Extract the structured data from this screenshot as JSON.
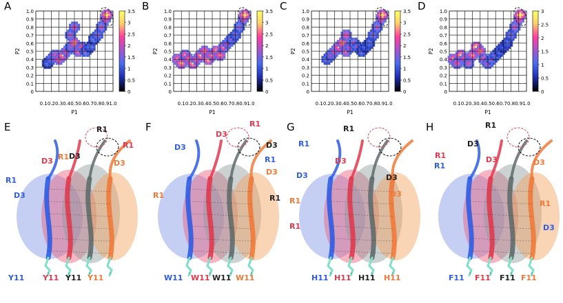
{
  "colors": {
    "colorbar_stops": [
      "#000000",
      "#1f2fb0",
      "#4a6cf0",
      "#a855c8",
      "#ff3fa0",
      "#ffd36b",
      "#ffff66"
    ],
    "blue": "#2f5de3",
    "red": "#e03a4e",
    "black": "#222222",
    "orange": "#f07a3a",
    "protein_blue": "#7f95e6",
    "protein_red": "#e85a7a",
    "protein_gray": "#8f9a9a",
    "protein_orange": "#f2a05a"
  },
  "chart_data": [
    {
      "panel": "A",
      "type": "heatmap",
      "xlabel": "P1",
      "ylabel": "P2",
      "xlim": [
        0,
        1.0
      ],
      "ylim": [
        0,
        1.0
      ],
      "xticks": [
        "0.1",
        "0.2",
        "0.3",
        "0.4",
        "0.5",
        "0.6",
        "0.7",
        "0.8",
        "0.9",
        "1.0"
      ],
      "yticks": [
        "0",
        "0.1",
        "0.2",
        "0.3",
        "0.4",
        "0.5",
        "0.6",
        "0.7",
        "0.8",
        "0.9",
        "1.0"
      ],
      "colorbar_ticks": [
        "0",
        "0.5",
        "1",
        "1.5",
        "2",
        "2.5",
        "3",
        "3.5"
      ],
      "grid": true,
      "cells": [
        [
          0.15,
          0.35,
          1.2
        ],
        [
          0.2,
          0.4,
          1.8
        ],
        [
          0.25,
          0.45,
          2.2
        ],
        [
          0.3,
          0.4,
          2.8
        ],
        [
          0.35,
          0.45,
          3.0
        ],
        [
          0.4,
          0.5,
          2.5
        ],
        [
          0.45,
          0.55,
          1.8
        ],
        [
          0.45,
          0.7,
          2.0
        ],
        [
          0.5,
          0.8,
          2.2
        ],
        [
          0.5,
          0.6,
          3.0
        ],
        [
          0.55,
          0.5,
          2.6
        ],
        [
          0.6,
          0.55,
          2.4
        ],
        [
          0.65,
          0.5,
          1.8
        ],
        [
          0.7,
          0.55,
          1.4
        ],
        [
          0.75,
          0.65,
          1.5
        ],
        [
          0.8,
          0.7,
          1.8
        ],
        [
          0.85,
          0.8,
          2.0
        ],
        [
          0.9,
          0.9,
          2.6
        ],
        [
          0.92,
          0.95,
          3.3
        ]
      ]
    },
    {
      "panel": "B",
      "type": "heatmap",
      "xlabel": "P1",
      "ylabel": "P2",
      "xlim": [
        0,
        1.0
      ],
      "ylim": [
        0,
        1.0
      ],
      "xticks": [
        "0.1",
        "0.2",
        "0.3",
        "0.4",
        "0.5",
        "0.6",
        "0.7",
        "0.8",
        "0.9",
        "1.0"
      ],
      "yticks": [
        "0",
        "0.1",
        "0.2",
        "0.3",
        "0.4",
        "0.5",
        "0.6",
        "0.7",
        "0.8",
        "0.9",
        "1.0"
      ],
      "colorbar_ticks": [
        "0",
        "0.5",
        "1",
        "1.5",
        "2",
        "2.5",
        "3",
        "3.5"
      ],
      "grid": true,
      "cells": [
        [
          0.05,
          0.4,
          2.8
        ],
        [
          0.1,
          0.35,
          3.0
        ],
        [
          0.15,
          0.45,
          2.6
        ],
        [
          0.2,
          0.4,
          2.9
        ],
        [
          0.25,
          0.35,
          3.1
        ],
        [
          0.3,
          0.4,
          2.7
        ],
        [
          0.35,
          0.45,
          3.0
        ],
        [
          0.4,
          0.5,
          2.8
        ],
        [
          0.45,
          0.4,
          3.2
        ],
        [
          0.5,
          0.45,
          2.9
        ],
        [
          0.55,
          0.5,
          3.0
        ],
        [
          0.6,
          0.45,
          2.8
        ],
        [
          0.65,
          0.55,
          2.6
        ],
        [
          0.7,
          0.6,
          2.2
        ],
        [
          0.75,
          0.65,
          1.8
        ],
        [
          0.8,
          0.7,
          1.6
        ],
        [
          0.85,
          0.8,
          1.8
        ],
        [
          0.9,
          0.9,
          2.4
        ],
        [
          0.92,
          0.95,
          3.3
        ]
      ]
    },
    {
      "panel": "C",
      "type": "heatmap",
      "xlabel": "P1",
      "ylabel": "P2",
      "xlim": [
        0,
        1.0
      ],
      "ylim": [
        0,
        1.0
      ],
      "xticks": [
        "0.1",
        "0.2",
        "0.3",
        "0.4",
        "0.5",
        "0.6",
        "0.7",
        "0.8",
        "0.9",
        "1.0"
      ],
      "yticks": [
        "0",
        "0.1",
        "0.2",
        "0.3",
        "0.4",
        "0.5",
        "0.6",
        "0.7",
        "0.8",
        "0.9",
        "1.0"
      ],
      "colorbar_ticks": [
        "0",
        "0.5",
        "1",
        "1.5",
        "2",
        "2.5",
        "3",
        "3.5"
      ],
      "grid": true,
      "cells": [
        [
          0.2,
          0.4,
          1.6
        ],
        [
          0.25,
          0.45,
          2.0
        ],
        [
          0.3,
          0.5,
          2.4
        ],
        [
          0.35,
          0.55,
          2.8
        ],
        [
          0.4,
          0.6,
          3.0
        ],
        [
          0.45,
          0.7,
          2.4
        ],
        [
          0.45,
          0.5,
          2.6
        ],
        [
          0.5,
          0.55,
          2.2
        ],
        [
          0.55,
          0.6,
          2.0
        ],
        [
          0.6,
          0.55,
          1.8
        ],
        [
          0.65,
          0.5,
          1.5
        ],
        [
          0.7,
          0.55,
          1.3
        ],
        [
          0.75,
          0.6,
          1.4
        ],
        [
          0.8,
          0.7,
          1.7
        ],
        [
          0.85,
          0.8,
          2.0
        ],
        [
          0.9,
          0.9,
          2.6
        ],
        [
          0.92,
          0.95,
          3.3
        ]
      ]
    },
    {
      "panel": "D",
      "type": "heatmap",
      "xlabel": "P1",
      "ylabel": "P2",
      "xlim": [
        0,
        1.0
      ],
      "ylim": [
        0,
        1.0
      ],
      "xticks": [
        "0.1",
        "0.2",
        "0.3",
        "0.4",
        "0.5",
        "0.6",
        "0.7",
        "0.8",
        "0.9",
        "1.0"
      ],
      "yticks": [
        "0",
        "0.1",
        "0.2",
        "0.3",
        "0.4",
        "0.5",
        "0.6",
        "0.7",
        "0.8",
        "0.9",
        "1.0"
      ],
      "colorbar_ticks": [
        "0",
        "0.5",
        "1",
        "1.5",
        "2",
        "2.5",
        "3"
      ],
      "grid": true,
      "cells": [
        [
          0.05,
          0.4,
          2.4
        ],
        [
          0.1,
          0.35,
          2.0
        ],
        [
          0.15,
          0.45,
          2.6
        ],
        [
          0.2,
          0.4,
          2.2
        ],
        [
          0.25,
          0.35,
          1.8
        ],
        [
          0.3,
          0.45,
          2.4
        ],
        [
          0.35,
          0.55,
          2.8
        ],
        [
          0.4,
          0.5,
          2.5
        ],
        [
          0.45,
          0.4,
          2.0
        ],
        [
          0.5,
          0.35,
          1.8
        ],
        [
          0.55,
          0.4,
          1.6
        ],
        [
          0.6,
          0.45,
          1.4
        ],
        [
          0.65,
          0.5,
          1.2
        ],
        [
          0.7,
          0.55,
          1.0
        ],
        [
          0.75,
          0.6,
          1.1
        ],
        [
          0.8,
          0.7,
          1.4
        ],
        [
          0.85,
          0.8,
          1.8
        ],
        [
          0.9,
          0.9,
          2.4
        ],
        [
          0.92,
          0.95,
          3.0
        ]
      ]
    }
  ],
  "structures": [
    {
      "panel": "E",
      "labels": [
        {
          "text": "R1",
          "color": "black"
        },
        {
          "text": "R1",
          "color": "red"
        },
        {
          "text": "D3",
          "color": "red"
        },
        {
          "text": "R1",
          "color": "orange"
        },
        {
          "text": "D3",
          "color": "black"
        },
        {
          "text": "D3",
          "color": "orange"
        },
        {
          "text": "R1",
          "color": "blue"
        },
        {
          "text": "D3",
          "color": "blue"
        },
        {
          "text": "Y11",
          "color": "blue"
        },
        {
          "text": "Y11",
          "color": "red"
        },
        {
          "text": "Y11",
          "color": "black"
        },
        {
          "text": "Y11",
          "color": "orange"
        }
      ]
    },
    {
      "panel": "F",
      "labels": [
        {
          "text": "R1",
          "color": "red"
        },
        {
          "text": "D3",
          "color": "red"
        },
        {
          "text": "D3",
          "color": "black"
        },
        {
          "text": "D3",
          "color": "blue"
        },
        {
          "text": "R1",
          "color": "blue"
        },
        {
          "text": "D3",
          "color": "orange"
        },
        {
          "text": "R1",
          "color": "orange"
        },
        {
          "text": "R1",
          "color": "black"
        },
        {
          "text": "W11",
          "color": "blue"
        },
        {
          "text": "W11",
          "color": "red"
        },
        {
          "text": "W11",
          "color": "black"
        },
        {
          "text": "W11",
          "color": "orange"
        }
      ]
    },
    {
      "panel": "G",
      "labels": [
        {
          "text": "R1",
          "color": "black"
        },
        {
          "text": "R1",
          "color": "blue"
        },
        {
          "text": "D3",
          "color": "red"
        },
        {
          "text": "D3",
          "color": "blue"
        },
        {
          "text": "D3",
          "color": "black"
        },
        {
          "text": "R1",
          "color": "orange"
        },
        {
          "text": "D3",
          "color": "orange"
        },
        {
          "text": "R1",
          "color": "red"
        },
        {
          "text": "H11",
          "color": "blue"
        },
        {
          "text": "H11",
          "color": "red"
        },
        {
          "text": "H11",
          "color": "black"
        },
        {
          "text": "H11",
          "color": "orange"
        }
      ]
    },
    {
      "panel": "H",
      "labels": [
        {
          "text": "R1",
          "color": "black"
        },
        {
          "text": "D3",
          "color": "black"
        },
        {
          "text": "R1",
          "color": "red"
        },
        {
          "text": "D3",
          "color": "red"
        },
        {
          "text": "D3",
          "color": "orange"
        },
        {
          "text": "R1",
          "color": "blue"
        },
        {
          "text": "R1",
          "color": "orange"
        },
        {
          "text": "D3",
          "color": "blue"
        },
        {
          "text": "F11",
          "color": "blue"
        },
        {
          "text": "F11",
          "color": "red"
        },
        {
          "text": "F11",
          "color": "black"
        },
        {
          "text": "F11",
          "color": "orange"
        }
      ]
    }
  ]
}
